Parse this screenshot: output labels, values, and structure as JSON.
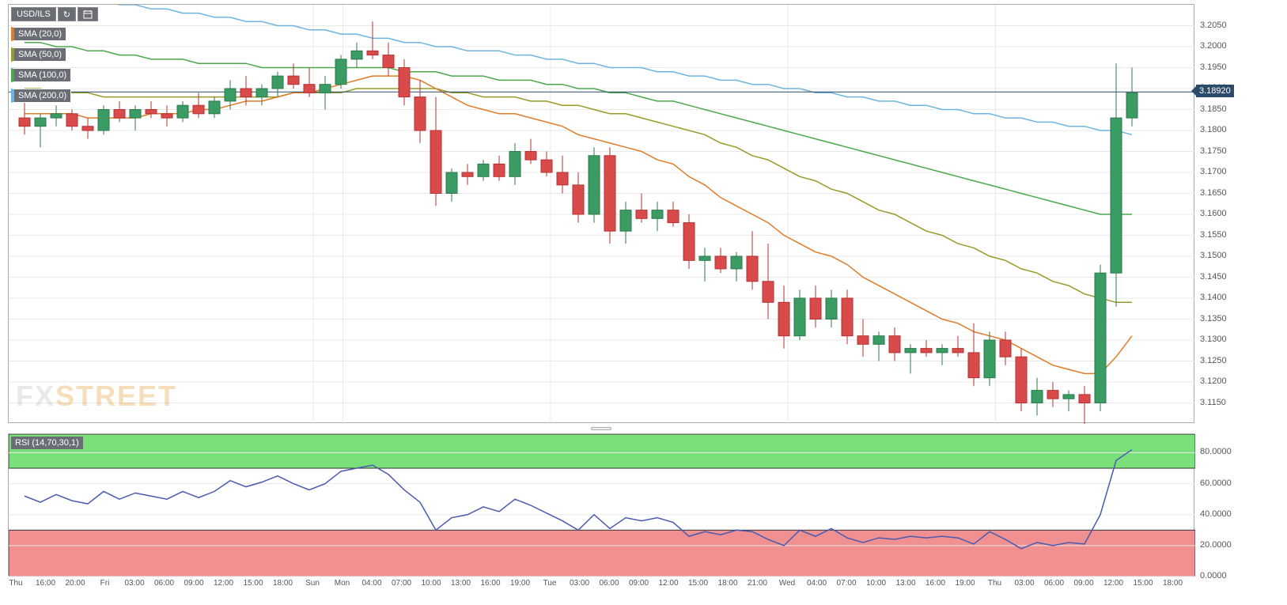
{
  "symbol": "USD/ILS",
  "watermark": {
    "fx": "FX",
    "street": "STREET",
    "color_fx": "#c0c0c0",
    "color_street": "#e8a33d"
  },
  "toolbar": {
    "refresh": "↻",
    "calendar": "📅"
  },
  "main": {
    "ymin": 3.11,
    "ymax": 3.21,
    "yticks": [
      3.115,
      3.12,
      3.125,
      3.13,
      3.135,
      3.14,
      3.145,
      3.15,
      3.155,
      3.16,
      3.165,
      3.17,
      3.175,
      3.18,
      3.185,
      3.19,
      3.195,
      3.2,
      3.205
    ],
    "current_price": 3.1892,
    "line_y": 3.1892,
    "grid_color": "#e8e8e8",
    "background": "#ffffff",
    "candle_up_fill": "#3a9c64",
    "candle_up_border": "#2c7a4c",
    "candle_down_fill": "#d94a4a",
    "candle_down_border": "#b53232"
  },
  "indicators": [
    {
      "label": "SMA (20,0)",
      "color": "#e07b28"
    },
    {
      "label": "SMA (50,0)",
      "color": "#9a9a2a"
    },
    {
      "label": "SMA (100,0)",
      "color": "#4aa84a"
    },
    {
      "label": "SMA (200,0)",
      "color": "#6db4e0"
    }
  ],
  "x_labels": [
    "Thu",
    "16:00",
    "20:00",
    "Fri",
    "03:00",
    "06:00",
    "09:00",
    "12:00",
    "15:00",
    "18:00",
    "Sun",
    "Mon",
    "04:00",
    "07:00",
    "10:00",
    "13:00",
    "16:00",
    "19:00",
    "Tue",
    "03:00",
    "06:00",
    "09:00",
    "12:00",
    "15:00",
    "18:00",
    "21:00",
    "Wed",
    "04:00",
    "07:00",
    "10:00",
    "13:00",
    "16:00",
    "19:00",
    "Thu",
    "03:00",
    "06:00",
    "09:00",
    "12:00",
    "15:00",
    "18:00"
  ],
  "x_grid": [
    10,
    11,
    18,
    26,
    33
  ],
  "candles": [
    {
      "o": 3.183,
      "h": 3.187,
      "l": 3.179,
      "c": 3.181
    },
    {
      "o": 3.181,
      "h": 3.184,
      "l": 3.176,
      "c": 3.183
    },
    {
      "o": 3.183,
      "h": 3.186,
      "l": 3.181,
      "c": 3.184
    },
    {
      "o": 3.184,
      "h": 3.185,
      "l": 3.18,
      "c": 3.181
    },
    {
      "o": 3.181,
      "h": 3.183,
      "l": 3.178,
      "c": 3.18
    },
    {
      "o": 3.18,
      "h": 3.186,
      "l": 3.179,
      "c": 3.185
    },
    {
      "o": 3.185,
      "h": 3.187,
      "l": 3.182,
      "c": 3.183
    },
    {
      "o": 3.183,
      "h": 3.186,
      "l": 3.18,
      "c": 3.185
    },
    {
      "o": 3.185,
      "h": 3.187,
      "l": 3.183,
      "c": 3.184
    },
    {
      "o": 3.184,
      "h": 3.186,
      "l": 3.181,
      "c": 3.183
    },
    {
      "o": 3.183,
      "h": 3.187,
      "l": 3.182,
      "c": 3.186
    },
    {
      "o": 3.186,
      "h": 3.189,
      "l": 3.183,
      "c": 3.184
    },
    {
      "o": 3.184,
      "h": 3.188,
      "l": 3.183,
      "c": 3.187
    },
    {
      "o": 3.187,
      "h": 3.192,
      "l": 3.185,
      "c": 3.19
    },
    {
      "o": 3.19,
      "h": 3.193,
      "l": 3.186,
      "c": 3.188
    },
    {
      "o": 3.188,
      "h": 3.191,
      "l": 3.186,
      "c": 3.19
    },
    {
      "o": 3.19,
      "h": 3.194,
      "l": 3.188,
      "c": 3.193
    },
    {
      "o": 3.193,
      "h": 3.196,
      "l": 3.19,
      "c": 3.191
    },
    {
      "o": 3.191,
      "h": 3.195,
      "l": 3.188,
      "c": 3.189
    },
    {
      "o": 3.189,
      "h": 3.193,
      "l": 3.185,
      "c": 3.191
    },
    {
      "o": 3.191,
      "h": 3.198,
      "l": 3.19,
      "c": 3.197
    },
    {
      "o": 3.197,
      "h": 3.201,
      "l": 3.195,
      "c": 3.199
    },
    {
      "o": 3.199,
      "h": 3.206,
      "l": 3.197,
      "c": 3.198
    },
    {
      "o": 3.198,
      "h": 3.201,
      "l": 3.193,
      "c": 3.195
    },
    {
      "o": 3.195,
      "h": 3.197,
      "l": 3.186,
      "c": 3.188
    },
    {
      "o": 3.188,
      "h": 3.192,
      "l": 3.177,
      "c": 3.18
    },
    {
      "o": 3.18,
      "h": 3.188,
      "l": 3.162,
      "c": 3.165
    },
    {
      "o": 3.165,
      "h": 3.171,
      "l": 3.163,
      "c": 3.17
    },
    {
      "o": 3.17,
      "h": 3.172,
      "l": 3.167,
      "c": 3.169
    },
    {
      "o": 3.169,
      "h": 3.173,
      "l": 3.168,
      "c": 3.172
    },
    {
      "o": 3.172,
      "h": 3.174,
      "l": 3.168,
      "c": 3.169
    },
    {
      "o": 3.169,
      "h": 3.177,
      "l": 3.167,
      "c": 3.175
    },
    {
      "o": 3.175,
      "h": 3.178,
      "l": 3.172,
      "c": 3.173
    },
    {
      "o": 3.173,
      "h": 3.175,
      "l": 3.169,
      "c": 3.17
    },
    {
      "o": 3.17,
      "h": 3.174,
      "l": 3.165,
      "c": 3.167
    },
    {
      "o": 3.167,
      "h": 3.17,
      "l": 3.158,
      "c": 3.16
    },
    {
      "o": 3.16,
      "h": 3.176,
      "l": 3.158,
      "c": 3.174
    },
    {
      "o": 3.174,
      "h": 3.176,
      "l": 3.153,
      "c": 3.156
    },
    {
      "o": 3.156,
      "h": 3.163,
      "l": 3.153,
      "c": 3.161
    },
    {
      "o": 3.161,
      "h": 3.165,
      "l": 3.158,
      "c": 3.159
    },
    {
      "o": 3.159,
      "h": 3.163,
      "l": 3.156,
      "c": 3.161
    },
    {
      "o": 3.161,
      "h": 3.163,
      "l": 3.157,
      "c": 3.158
    },
    {
      "o": 3.158,
      "h": 3.16,
      "l": 3.147,
      "c": 3.149
    },
    {
      "o": 3.149,
      "h": 3.152,
      "l": 3.144,
      "c": 3.15
    },
    {
      "o": 3.15,
      "h": 3.152,
      "l": 3.146,
      "c": 3.147
    },
    {
      "o": 3.147,
      "h": 3.151,
      "l": 3.144,
      "c": 3.15
    },
    {
      "o": 3.15,
      "h": 3.156,
      "l": 3.142,
      "c": 3.144
    },
    {
      "o": 3.144,
      "h": 3.153,
      "l": 3.135,
      "c": 3.139
    },
    {
      "o": 3.139,
      "h": 3.143,
      "l": 3.128,
      "c": 3.131
    },
    {
      "o": 3.131,
      "h": 3.142,
      "l": 3.13,
      "c": 3.14
    },
    {
      "o": 3.14,
      "h": 3.143,
      "l": 3.133,
      "c": 3.135
    },
    {
      "o": 3.135,
      "h": 3.142,
      "l": 3.133,
      "c": 3.14
    },
    {
      "o": 3.14,
      "h": 3.142,
      "l": 3.129,
      "c": 3.131
    },
    {
      "o": 3.131,
      "h": 3.135,
      "l": 3.126,
      "c": 3.129
    },
    {
      "o": 3.129,
      "h": 3.132,
      "l": 3.125,
      "c": 3.131
    },
    {
      "o": 3.131,
      "h": 3.133,
      "l": 3.125,
      "c": 3.127
    },
    {
      "o": 3.127,
      "h": 3.129,
      "l": 3.122,
      "c": 3.128
    },
    {
      "o": 3.128,
      "h": 3.13,
      "l": 3.126,
      "c": 3.127
    },
    {
      "o": 3.127,
      "h": 3.129,
      "l": 3.124,
      "c": 3.128
    },
    {
      "o": 3.128,
      "h": 3.131,
      "l": 3.126,
      "c": 3.127
    },
    {
      "o": 3.127,
      "h": 3.134,
      "l": 3.119,
      "c": 3.121
    },
    {
      "o": 3.121,
      "h": 3.132,
      "l": 3.119,
      "c": 3.13
    },
    {
      "o": 3.13,
      "h": 3.132,
      "l": 3.124,
      "c": 3.126
    },
    {
      "o": 3.126,
      "h": 3.128,
      "l": 3.113,
      "c": 3.115
    },
    {
      "o": 3.115,
      "h": 3.121,
      "l": 3.112,
      "c": 3.118
    },
    {
      "o": 3.118,
      "h": 3.12,
      "l": 3.114,
      "c": 3.116
    },
    {
      "o": 3.116,
      "h": 3.118,
      "l": 3.113,
      "c": 3.117
    },
    {
      "o": 3.117,
      "h": 3.119,
      "l": 3.11,
      "c": 3.115
    },
    {
      "o": 3.115,
      "h": 3.148,
      "l": 3.113,
      "c": 3.146
    },
    {
      "o": 3.146,
      "h": 3.196,
      "l": 3.138,
      "c": 3.183
    },
    {
      "o": 3.183,
      "h": 3.195,
      "l": 3.181,
      "c": 3.189
    }
  ],
  "sma20": [
    3.184,
    3.184,
    3.184,
    3.184,
    3.183,
    3.183,
    3.183,
    3.183,
    3.184,
    3.184,
    3.184,
    3.185,
    3.185,
    3.186,
    3.187,
    3.187,
    3.188,
    3.189,
    3.189,
    3.19,
    3.191,
    3.192,
    3.193,
    3.193,
    3.193,
    3.192,
    3.19,
    3.188,
    3.186,
    3.185,
    3.184,
    3.184,
    3.183,
    3.182,
    3.181,
    3.179,
    3.178,
    3.177,
    3.176,
    3.175,
    3.173,
    3.172,
    3.169,
    3.167,
    3.164,
    3.162,
    3.16,
    3.158,
    3.155,
    3.153,
    3.151,
    3.15,
    3.148,
    3.145,
    3.143,
    3.141,
    3.139,
    3.137,
    3.135,
    3.134,
    3.132,
    3.131,
    3.13,
    3.128,
    3.126,
    3.124,
    3.123,
    3.122,
    3.122,
    3.126,
    3.131
  ],
  "sma50": [
    3.19,
    3.19,
    3.189,
    3.189,
    3.189,
    3.188,
    3.188,
    3.188,
    3.188,
    3.188,
    3.188,
    3.188,
    3.188,
    3.188,
    3.188,
    3.188,
    3.188,
    3.189,
    3.189,
    3.189,
    3.189,
    3.19,
    3.19,
    3.19,
    3.19,
    3.19,
    3.19,
    3.189,
    3.189,
    3.188,
    3.188,
    3.188,
    3.187,
    3.187,
    3.186,
    3.186,
    3.185,
    3.184,
    3.184,
    3.183,
    3.182,
    3.181,
    3.18,
    3.179,
    3.177,
    3.176,
    3.174,
    3.173,
    3.171,
    3.169,
    3.168,
    3.166,
    3.165,
    3.163,
    3.161,
    3.16,
    3.158,
    3.156,
    3.155,
    3.153,
    3.152,
    3.15,
    3.149,
    3.147,
    3.146,
    3.144,
    3.143,
    3.141,
    3.14,
    3.139,
    3.139
  ],
  "sma100": [
    3.201,
    3.201,
    3.2,
    3.2,
    3.199,
    3.199,
    3.198,
    3.198,
    3.197,
    3.197,
    3.197,
    3.196,
    3.196,
    3.196,
    3.196,
    3.195,
    3.195,
    3.195,
    3.195,
    3.195,
    3.195,
    3.195,
    3.195,
    3.195,
    3.194,
    3.194,
    3.194,
    3.193,
    3.193,
    3.193,
    3.192,
    3.192,
    3.192,
    3.191,
    3.191,
    3.19,
    3.19,
    3.189,
    3.189,
    3.188,
    3.187,
    3.187,
    3.186,
    3.185,
    3.184,
    3.183,
    3.182,
    3.181,
    3.18,
    3.179,
    3.178,
    3.177,
    3.176,
    3.175,
    3.174,
    3.173,
    3.172,
    3.171,
    3.17,
    3.169,
    3.168,
    3.167,
    3.166,
    3.165,
    3.164,
    3.163,
    3.162,
    3.161,
    3.16,
    3.16,
    3.16
  ],
  "sma200": [
    3.213,
    3.213,
    3.212,
    3.212,
    3.211,
    3.211,
    3.21,
    3.21,
    3.209,
    3.209,
    3.208,
    3.208,
    3.207,
    3.207,
    3.206,
    3.206,
    3.205,
    3.205,
    3.204,
    3.204,
    3.203,
    3.203,
    3.202,
    3.202,
    3.201,
    3.201,
    3.2,
    3.2,
    3.199,
    3.199,
    3.199,
    3.198,
    3.198,
    3.197,
    3.197,
    3.196,
    3.196,
    3.195,
    3.195,
    3.195,
    3.194,
    3.194,
    3.193,
    3.193,
    3.192,
    3.192,
    3.191,
    3.191,
    3.19,
    3.19,
    3.189,
    3.189,
    3.188,
    3.188,
    3.187,
    3.187,
    3.186,
    3.186,
    3.185,
    3.185,
    3.184,
    3.184,
    3.183,
    3.183,
    3.182,
    3.182,
    3.181,
    3.181,
    3.18,
    3.18,
    3.179
  ],
  "rsi": {
    "label": "RSI (14,70,30,1)",
    "ymin": 0,
    "ymax": 92,
    "yticks": [
      0.0,
      20.0,
      40.0,
      60.0,
      80.0
    ],
    "upper": 70,
    "lower": 30,
    "upper_fill": "#7ae07a",
    "lower_fill": "#f09090",
    "line_color": "#4a5ab0",
    "values": [
      52,
      48,
      53,
      49,
      47,
      55,
      50,
      54,
      52,
      50,
      55,
      51,
      55,
      62,
      58,
      61,
      65,
      60,
      56,
      60,
      68,
      70,
      72,
      66,
      56,
      48,
      30,
      38,
      40,
      45,
      42,
      50,
      46,
      41,
      36,
      30,
      40,
      31,
      38,
      36,
      38,
      35,
      26,
      29,
      27,
      30,
      29,
      24,
      20,
      30,
      26,
      31,
      25,
      22,
      25,
      24,
      26,
      25,
      26,
      25,
      21,
      29,
      24,
      18,
      22,
      20,
      22,
      21,
      40,
      75,
      82
    ]
  }
}
